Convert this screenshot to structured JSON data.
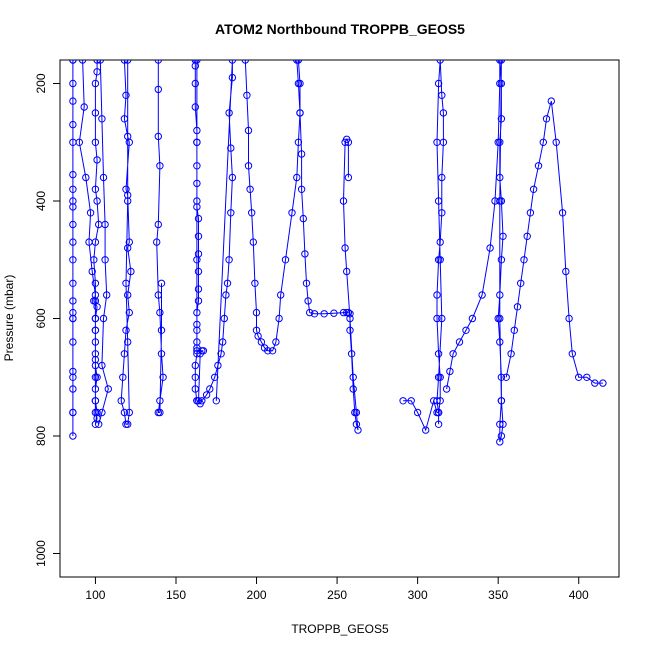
{
  "chart_data": {
    "type": "scatter",
    "title": "ATOM2 Northbound TROPPB_GEOS5",
    "xlabel": "TROPPB_GEOS5",
    "ylabel": "Pressure (mbar)",
    "xlim": [
      78,
      425
    ],
    "ylim": [
      1040,
      160
    ],
    "y_inverted": true,
    "x_ticks": [
      100,
      150,
      200,
      250,
      300,
      350,
      400
    ],
    "y_ticks": [
      200,
      400,
      600,
      800,
      1000
    ],
    "style": {
      "point": "open-circle",
      "connected": true,
      "grid": false,
      "legend": "none"
    },
    "series": [
      {
        "x": [
          86,
          86,
          86,
          86,
          86,
          86,
          86,
          86,
          86,
          86,
          86,
          86,
          86,
          86,
          86,
          86,
          86,
          86,
          86,
          86,
          86,
          86,
          86,
          86,
          86
        ],
        "y": [
          160,
          200,
          230,
          270,
          300,
          355,
          380,
          410,
          440,
          470,
          500,
          540,
          570,
          590,
          600,
          640,
          690,
          720,
          760,
          800,
          760,
          700,
          600,
          400,
          160
        ]
      },
      {
        "x": [
          92,
          93,
          90,
          94,
          97,
          96,
          98,
          100,
          99,
          101,
          100,
          100,
          100,
          100,
          100,
          101,
          100,
          100,
          100,
          101,
          100,
          101,
          100,
          100,
          100,
          100,
          100,
          100,
          100,
          99,
          100,
          102,
          101,
          100,
          101,
          100,
          100,
          100,
          101,
          101
        ],
        "y": [
          160,
          240,
          300,
          360,
          420,
          470,
          520,
          560,
          570,
          580,
          600,
          620,
          640,
          660,
          680,
          700,
          720,
          740,
          760,
          770,
          780,
          760,
          740,
          700,
          670,
          620,
          600,
          570,
          540,
          500,
          470,
          440,
          400,
          380,
          330,
          300,
          250,
          200,
          180,
          160
        ]
      },
      {
        "x": [
          103,
          104,
          105,
          106,
          106,
          107,
          105,
          104,
          108,
          104,
          102
        ],
        "y": [
          160,
          260,
          360,
          440,
          500,
          560,
          600,
          680,
          720,
          760,
          780
        ]
      },
      {
        "x": [
          118,
          119,
          118,
          120,
          121,
          119,
          120,
          121,
          120,
          122,
          120,
          121,
          119,
          118,
          117,
          116,
          118,
          119,
          120,
          121,
          120,
          119,
          120,
          120
        ],
        "y": [
          160,
          220,
          260,
          290,
          300,
          380,
          390,
          470,
          480,
          520,
          560,
          590,
          620,
          660,
          700,
          740,
          760,
          780,
          780,
          760,
          640,
          540,
          400,
          160
        ]
      },
      {
        "x": [
          139,
          139,
          139,
          140,
          139,
          138,
          139,
          140,
          141,
          142,
          140,
          139,
          140,
          141,
          141
        ],
        "y": [
          160,
          210,
          290,
          340,
          440,
          470,
          560,
          590,
          660,
          700,
          740,
          760,
          760,
          620,
          540
        ]
      },
      {
        "x": [
          162,
          162,
          162,
          162,
          163,
          163,
          163,
          163,
          163,
          163,
          164,
          164,
          164,
          164,
          164,
          164,
          163,
          163,
          163,
          163,
          163,
          163,
          162,
          162,
          162,
          163,
          164,
          165,
          166,
          167,
          163,
          163,
          163,
          163
        ],
        "y": [
          160,
          170,
          200,
          240,
          280,
          300,
          340,
          370,
          400,
          410,
          430,
          460,
          490,
          520,
          550,
          570,
          590,
          610,
          620,
          640,
          650,
          660,
          680,
          700,
          720,
          740,
          740,
          660,
          655,
          655,
          655,
          500,
          300,
          160
        ]
      },
      {
        "x": [
          175,
          185,
          185,
          183,
          184,
          185,
          184,
          183,
          182,
          181,
          180,
          179,
          178,
          176,
          174,
          171,
          169,
          166,
          165,
          163
        ],
        "y": [
          740,
          160,
          190,
          250,
          310,
          360,
          420,
          500,
          540,
          560,
          600,
          640,
          660,
          680,
          700,
          720,
          730,
          740,
          745,
          740
        ]
      },
      {
        "x": [
          193,
          194,
          195,
          195,
          196,
          197,
          198,
          199,
          200,
          200,
          201,
          203,
          205,
          207,
          210,
          212,
          214,
          215,
          218,
          222,
          225,
          226,
          227,
          226,
          225
        ],
        "y": [
          160,
          220,
          280,
          340,
          380,
          420,
          470,
          540,
          590,
          620,
          630,
          640,
          650,
          655,
          655,
          640,
          600,
          560,
          500,
          420,
          360,
          300,
          250,
          200,
          160
        ]
      },
      {
        "x": [
          226,
          227,
          227,
          228,
          228,
          229,
          230,
          231,
          232,
          233,
          236,
          242,
          248,
          254,
          256,
          257,
          258,
          258,
          259,
          260,
          261,
          262,
          263,
          262,
          260,
          258,
          256,
          255,
          254,
          255,
          256,
          257,
          257
        ],
        "y": [
          160,
          200,
          250,
          320,
          380,
          430,
          490,
          540,
          570,
          590,
          592,
          592,
          591,
          590,
          590,
          590,
          592,
          620,
          660,
          720,
          760,
          780,
          790,
          760,
          700,
          600,
          520,
          480,
          400,
          300,
          295,
          300,
          360
        ]
      },
      {
        "x": [
          291,
          296,
          300,
          305,
          310,
          312,
          313,
          314,
          314,
          313,
          312,
          312,
          313,
          314,
          315,
          315,
          316,
          316,
          315,
          314,
          313,
          312,
          313,
          314,
          315,
          313,
          312,
          313,
          313
        ],
        "y": [
          740,
          740,
          760,
          790,
          740,
          760,
          760,
          740,
          700,
          660,
          600,
          560,
          500,
          470,
          420,
          360,
          300,
          250,
          220,
          160,
          200,
          300,
          400,
          500,
          600,
          700,
          740,
          760,
          780
        ]
      },
      {
        "x": [
          318,
          320,
          322,
          326,
          330,
          334,
          340,
          345,
          348,
          350,
          351,
          351,
          352,
          352,
          351,
          351,
          352,
          353,
          352,
          351,
          350,
          351,
          352,
          352,
          353,
          352,
          351,
          351,
          352,
          351,
          351,
          352
        ],
        "y": [
          720,
          690,
          660,
          640,
          620,
          600,
          560,
          480,
          400,
          300,
          200,
          160,
          200,
          260,
          300,
          360,
          400,
          460,
          500,
          560,
          600,
          640,
          700,
          740,
          780,
          800,
          810,
          780,
          740,
          600,
          400,
          160
        ]
      },
      {
        "x": [
          355,
          358,
          360,
          362,
          364,
          366,
          368,
          370,
          372,
          375,
          378,
          380,
          383,
          386,
          390,
          392,
          394,
          396,
          400,
          405,
          410,
          415
        ],
        "y": [
          700,
          660,
          620,
          580,
          540,
          500,
          460,
          420,
          380,
          340,
          300,
          260,
          230,
          300,
          420,
          520,
          600,
          660,
          700,
          700,
          710,
          710
        ]
      }
    ]
  }
}
